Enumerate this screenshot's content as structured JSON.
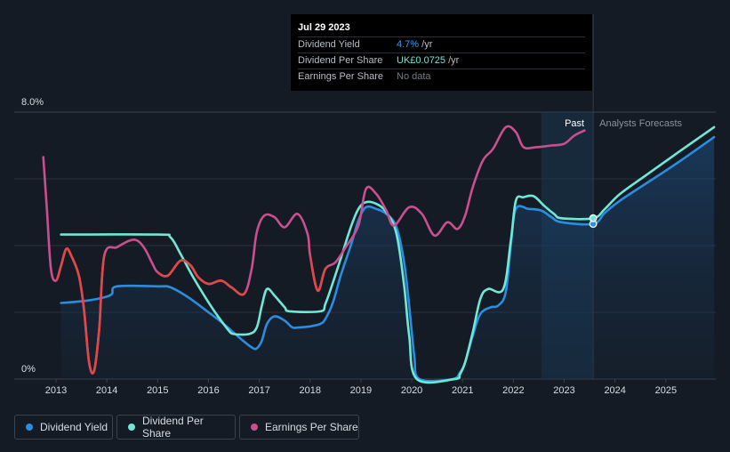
{
  "tooltip": {
    "date": "Jul 29 2023",
    "rows": [
      {
        "label": "Dividend Yield",
        "value": "4.7%",
        "unit": " /yr",
        "color": "#3a9cf0"
      },
      {
        "label": "Dividend Per Share",
        "value": "UK£0.0725",
        "unit": " /yr",
        "color": "#6fe8d6"
      },
      {
        "label": "Earnings Per Share",
        "value": "No data",
        "unit": "",
        "color": "#777c83"
      }
    ]
  },
  "labels": {
    "past": "Past",
    "forecast": "Analysts Forecasts"
  },
  "legend": [
    {
      "label": "Dividend Yield",
      "color": "#2a8de0"
    },
    {
      "label": "Dividend Per Share",
      "color": "#6fe8d6"
    },
    {
      "label": "Earnings Per Share",
      "color": "#c94f8f"
    }
  ],
  "chart_data": {
    "type": "line",
    "title": "",
    "y_tick_labels": [
      "8.0%",
      "0%"
    ],
    "ylim": [
      0,
      8.0
    ],
    "xlim": [
      2012.5,
      2025.95
    ],
    "x_tick_labels": [
      "2013",
      "2014",
      "2015",
      "2016",
      "2017",
      "2018",
      "2019",
      "2020",
      "2021",
      "2022",
      "2023",
      "2024",
      "2025"
    ],
    "past_region": [
      2022.55,
      2023.57
    ],
    "grid": true,
    "legend_position": "bottom-left",
    "series": [
      {
        "name": "Dividend Yield",
        "color": "#2a8de0",
        "fill": true,
        "points": [
          [
            2013.1,
            2.28
          ],
          [
            2013.6,
            2.35
          ],
          [
            2013.95,
            2.45
          ],
          [
            2014.1,
            2.55
          ],
          [
            2014.2,
            2.78
          ],
          [
            2015.0,
            2.78
          ],
          [
            2015.25,
            2.75
          ],
          [
            2015.6,
            2.45
          ],
          [
            2016.0,
            2.0
          ],
          [
            2016.3,
            1.65
          ],
          [
            2016.6,
            1.25
          ],
          [
            2016.85,
            0.95
          ],
          [
            2016.95,
            0.92
          ],
          [
            2017.05,
            1.15
          ],
          [
            2017.15,
            1.65
          ],
          [
            2017.3,
            1.88
          ],
          [
            2017.5,
            1.75
          ],
          [
            2017.65,
            1.55
          ],
          [
            2017.8,
            1.55
          ],
          [
            2018.0,
            1.58
          ],
          [
            2018.2,
            1.65
          ],
          [
            2018.3,
            1.8
          ],
          [
            2018.45,
            2.3
          ],
          [
            2018.6,
            3.1
          ],
          [
            2018.8,
            4.0
          ],
          [
            2018.95,
            4.75
          ],
          [
            2019.1,
            5.15
          ],
          [
            2019.3,
            5.1
          ],
          [
            2019.5,
            4.95
          ],
          [
            2019.7,
            4.55
          ],
          [
            2019.85,
            3.5
          ],
          [
            2019.95,
            2.2
          ],
          [
            2020.05,
            0.7
          ],
          [
            2020.15,
            0.0
          ],
          [
            2020.8,
            0.0
          ],
          [
            2020.95,
            0.2
          ],
          [
            2021.05,
            0.5
          ],
          [
            2021.2,
            1.3
          ],
          [
            2021.35,
            1.95
          ],
          [
            2021.55,
            2.15
          ],
          [
            2021.7,
            2.2
          ],
          [
            2021.85,
            2.6
          ],
          [
            2021.95,
            4.0
          ],
          [
            2022.05,
            5.1
          ],
          [
            2022.3,
            5.1
          ],
          [
            2022.55,
            5.05
          ],
          [
            2022.75,
            4.85
          ],
          [
            2022.95,
            4.7
          ],
          [
            2023.57,
            4.65
          ],
          [
            2023.8,
            4.98
          ],
          [
            2024.1,
            5.35
          ],
          [
            2024.6,
            5.85
          ],
          [
            2025.2,
            6.45
          ],
          [
            2025.95,
            7.25
          ]
        ]
      },
      {
        "name": "Dividend Per Share",
        "color": "#6fe8d6",
        "fill": false,
        "points": [
          [
            2013.1,
            4.33
          ],
          [
            2015.0,
            4.33
          ],
          [
            2015.25,
            4.25
          ],
          [
            2015.45,
            3.75
          ],
          [
            2015.7,
            3.05
          ],
          [
            2016.0,
            2.3
          ],
          [
            2016.2,
            1.85
          ],
          [
            2016.4,
            1.45
          ],
          [
            2016.5,
            1.35
          ],
          [
            2016.8,
            1.35
          ],
          [
            2016.95,
            1.55
          ],
          [
            2017.05,
            2.2
          ],
          [
            2017.15,
            2.7
          ],
          [
            2017.3,
            2.5
          ],
          [
            2017.5,
            2.15
          ],
          [
            2017.6,
            2.03
          ],
          [
            2018.2,
            2.03
          ],
          [
            2018.3,
            2.25
          ],
          [
            2018.45,
            2.9
          ],
          [
            2018.6,
            3.6
          ],
          [
            2018.8,
            4.55
          ],
          [
            2018.95,
            5.1
          ],
          [
            2019.1,
            5.3
          ],
          [
            2019.3,
            5.25
          ],
          [
            2019.5,
            5.0
          ],
          [
            2019.7,
            4.35
          ],
          [
            2019.85,
            2.8
          ],
          [
            2019.95,
            1.3
          ],
          [
            2020.1,
            0.0
          ],
          [
            2020.85,
            0.0
          ],
          [
            2020.95,
            0.15
          ],
          [
            2021.05,
            0.5
          ],
          [
            2021.2,
            1.4
          ],
          [
            2021.35,
            2.4
          ],
          [
            2021.5,
            2.7
          ],
          [
            2021.8,
            2.7
          ],
          [
            2021.95,
            4.15
          ],
          [
            2022.05,
            5.35
          ],
          [
            2022.2,
            5.45
          ],
          [
            2022.4,
            5.48
          ],
          [
            2022.6,
            5.2
          ],
          [
            2022.8,
            4.95
          ],
          [
            2022.95,
            4.82
          ],
          [
            2023.57,
            4.82
          ],
          [
            2023.8,
            5.1
          ],
          [
            2024.1,
            5.55
          ],
          [
            2024.6,
            6.1
          ],
          [
            2025.2,
            6.75
          ],
          [
            2025.95,
            7.55
          ]
        ]
      },
      {
        "name": "Earnings Per Share",
        "color": "#c94f8f",
        "red_color": "#e04848",
        "fill": false,
        "points": [
          [
            2012.75,
            6.65
          ],
          [
            2012.82,
            5.1
          ],
          [
            2012.9,
            3.3
          ],
          [
            2013.0,
            2.95
          ],
          [
            2013.1,
            3.4
          ],
          [
            2013.2,
            3.9
          ],
          [
            2013.3,
            3.7
          ],
          [
            2013.45,
            3.1
          ],
          [
            2013.55,
            2.1
          ],
          [
            2013.65,
            0.5
          ],
          [
            2013.75,
            0.25
          ],
          [
            2013.85,
            1.5
          ],
          [
            2013.95,
            3.7
          ],
          [
            2014.2,
            3.95
          ],
          [
            2014.45,
            4.15
          ],
          [
            2014.6,
            4.15
          ],
          [
            2014.75,
            3.9
          ],
          [
            2014.9,
            3.45
          ],
          [
            2015.0,
            3.2
          ],
          [
            2015.2,
            3.1
          ],
          [
            2015.45,
            3.55
          ],
          [
            2015.65,
            3.4
          ],
          [
            2015.8,
            3.05
          ],
          [
            2016.0,
            2.85
          ],
          [
            2016.25,
            2.95
          ],
          [
            2016.45,
            2.75
          ],
          [
            2016.7,
            2.55
          ],
          [
            2016.85,
            3.3
          ],
          [
            2016.95,
            4.4
          ],
          [
            2017.1,
            4.9
          ],
          [
            2017.3,
            4.85
          ],
          [
            2017.5,
            4.55
          ],
          [
            2017.75,
            4.95
          ],
          [
            2017.95,
            4.35
          ],
          [
            2018.0,
            3.7
          ],
          [
            2018.15,
            2.65
          ],
          [
            2018.3,
            3.3
          ],
          [
            2018.5,
            3.5
          ],
          [
            2018.7,
            3.95
          ],
          [
            2018.95,
            4.6
          ],
          [
            2019.1,
            5.7
          ],
          [
            2019.3,
            5.55
          ],
          [
            2019.5,
            5.05
          ],
          [
            2019.65,
            4.6
          ],
          [
            2019.95,
            5.15
          ],
          [
            2020.2,
            4.95
          ],
          [
            2020.45,
            4.3
          ],
          [
            2020.7,
            4.7
          ],
          [
            2020.9,
            4.5
          ],
          [
            2021.05,
            4.9
          ],
          [
            2021.2,
            5.75
          ],
          [
            2021.4,
            6.55
          ],
          [
            2021.6,
            6.9
          ],
          [
            2021.85,
            7.55
          ],
          [
            2022.05,
            7.4
          ],
          [
            2022.2,
            6.95
          ],
          [
            2022.45,
            6.95
          ],
          [
            2022.75,
            7.0
          ],
          [
            2023.0,
            7.05
          ],
          [
            2023.2,
            7.3
          ],
          [
            2023.4,
            7.45
          ]
        ],
        "red_segments": [
          [
            2013.0,
            2013.95
          ],
          [
            2015.0,
            2016.75
          ],
          [
            2018.0,
            2018.35
          ]
        ]
      }
    ],
    "markers": [
      {
        "x": 2023.57,
        "y": 4.65,
        "color": "#2a8de0"
      },
      {
        "x": 2023.57,
        "y": 4.82,
        "color": "#6fe8d6"
      }
    ]
  }
}
